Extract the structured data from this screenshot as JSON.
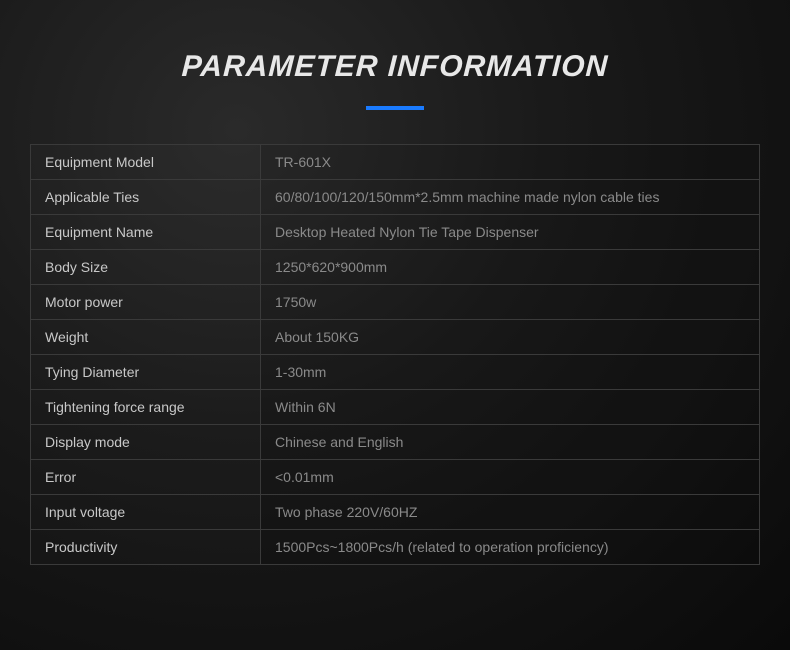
{
  "header": {
    "title": "PARAMETER INFORMATION"
  },
  "table": {
    "type": "table",
    "columns": [
      "label",
      "value"
    ],
    "column_widths": [
      "230px",
      "auto"
    ],
    "border_color": "#3a3a3a",
    "label_color": "#c8c8c8",
    "value_color": "#8a8a8a",
    "font_size": 14,
    "rows": [
      {
        "label": "Equipment Model",
        "value": "TR-601X"
      },
      {
        "label": "Applicable Ties",
        "value": "60/80/100/120/150mm*2.5mm machine made nylon cable ties"
      },
      {
        "label": "Equipment Name",
        "value": "Desktop Heated Nylon Tie Tape Dispenser"
      },
      {
        "label": "Body Size",
        "value": "1250*620*900mm"
      },
      {
        "label": "Motor power",
        "value": "1750w"
      },
      {
        "label": "Weight",
        "value": "About 150KG"
      },
      {
        "label": "Tying Diameter",
        "value": "1-30mm"
      },
      {
        "label": "Tightening force range",
        "value": "Within 6N"
      },
      {
        "label": "Display mode",
        "value": "Chinese and English"
      },
      {
        "label": "Error",
        "value": "<0.01mm"
      },
      {
        "label": "Input voltage",
        "value": "Two phase 220V/60HZ"
      },
      {
        "label": "Productivity",
        "value": "1500Pcs~1800Pcs/h (related to operation proficiency)"
      }
    ]
  },
  "styling": {
    "background_gradient": [
      "#2a2a2a",
      "#1a1a1a",
      "#0a0a0a"
    ],
    "title_color": "#e8e8e8",
    "title_fontsize": 30,
    "title_weight": 800,
    "underline_color": "#1a7bff",
    "underline_width": 58,
    "underline_height": 4
  }
}
